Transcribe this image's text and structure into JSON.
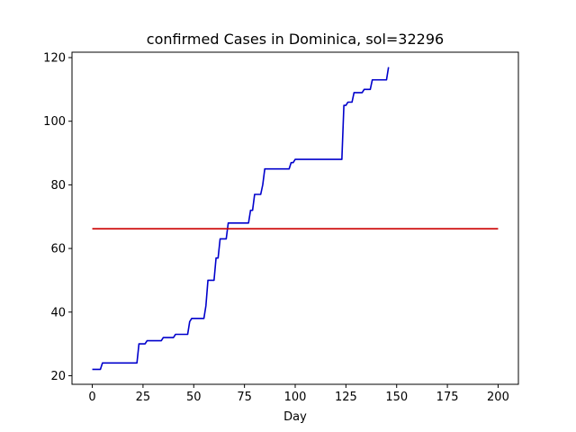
{
  "chart_data": {
    "type": "line",
    "title": "confirmed Cases in Dominica, sol=32296",
    "xlabel": "Day",
    "ylabel": "",
    "xlim": [
      -10,
      210
    ],
    "ylim": [
      17.3,
      121.7
    ],
    "xticks": [
      0,
      25,
      50,
      75,
      100,
      125,
      150,
      175,
      200
    ],
    "yticks": [
      20,
      40,
      60,
      80,
      100,
      120
    ],
    "grid": false,
    "series": [
      {
        "color": "#0000cc",
        "points": [
          [
            0,
            22
          ],
          [
            4,
            22
          ],
          [
            5,
            24
          ],
          [
            22,
            24
          ],
          [
            23,
            30
          ],
          [
            26,
            30
          ],
          [
            27,
            31
          ],
          [
            34,
            31
          ],
          [
            35,
            32
          ],
          [
            40,
            32
          ],
          [
            41,
            33
          ],
          [
            47,
            33
          ],
          [
            48,
            37
          ],
          [
            49,
            38
          ],
          [
            55,
            38
          ],
          [
            56,
            42
          ],
          [
            57,
            50
          ],
          [
            60,
            50
          ],
          [
            61,
            57
          ],
          [
            62,
            57
          ],
          [
            63,
            63
          ],
          [
            66,
            63
          ],
          [
            67,
            68
          ],
          [
            77,
            68
          ],
          [
            78,
            72
          ],
          [
            79,
            72
          ],
          [
            80,
            77
          ],
          [
            83,
            77
          ],
          [
            84,
            80
          ],
          [
            85,
            85
          ],
          [
            97,
            85
          ],
          [
            98,
            87
          ],
          [
            99,
            87
          ],
          [
            100,
            88
          ],
          [
            123,
            88
          ],
          [
            124,
            105
          ],
          [
            125,
            105
          ],
          [
            126,
            106
          ],
          [
            128,
            106
          ],
          [
            129,
            109
          ],
          [
            133,
            109
          ],
          [
            134,
            110
          ],
          [
            137,
            110
          ],
          [
            138,
            113
          ],
          [
            145,
            113
          ],
          [
            146,
            117
          ]
        ]
      },
      {
        "color": "#cc0000",
        "points": [
          [
            0,
            66.2
          ],
          [
            200,
            66.2
          ]
        ]
      }
    ]
  }
}
